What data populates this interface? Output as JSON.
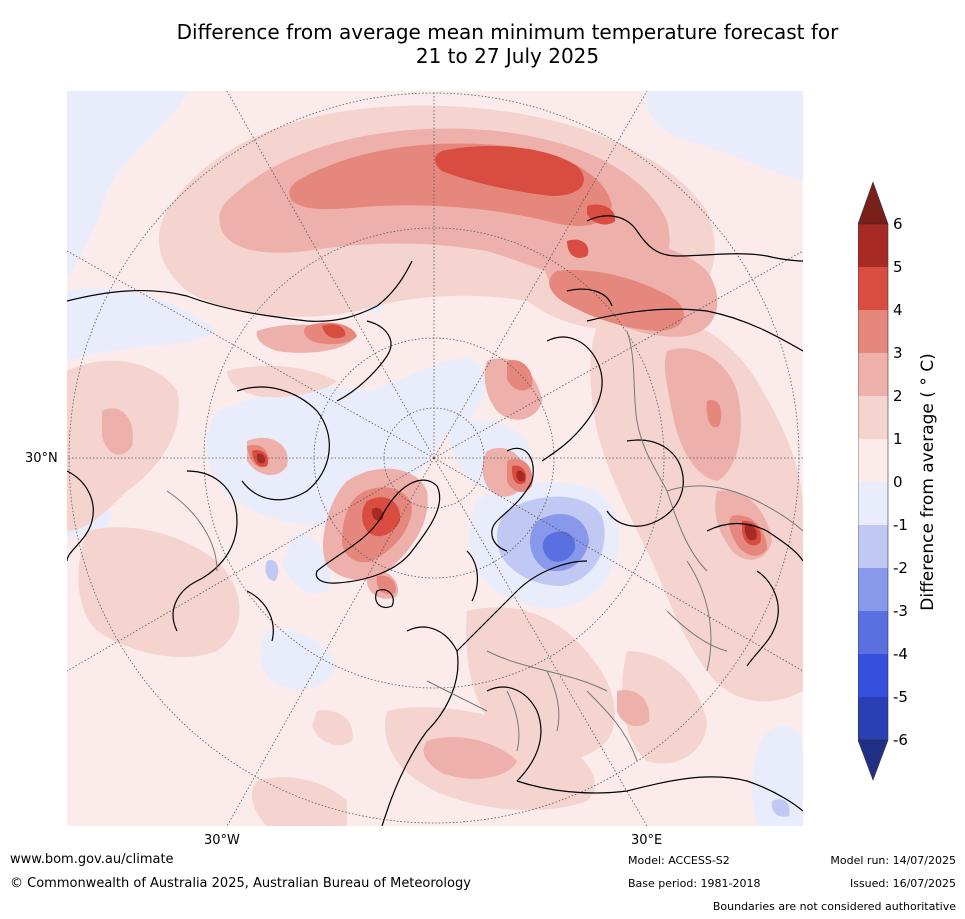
{
  "title": {
    "line1": "Difference from average mean minimum temperature forecast for",
    "line2": "21 to 27 July 2025"
  },
  "map": {
    "projection": "north-polar-stereographic",
    "labels": {
      "lat_30n": "30°N",
      "lon_30w": "30°W",
      "lon_30e": "30°E"
    }
  },
  "colorbar": {
    "label": "Difference from average ( ° C)",
    "ticks": [
      "6",
      "5",
      "4",
      "3",
      "2",
      "1",
      "0",
      "-1",
      "-2",
      "-3",
      "-4",
      "-5",
      "-6"
    ],
    "colors": {
      "over": "#7a1f1a",
      "5_6": "#a82a24",
      "4_5": "#d94c40",
      "3_4": "#e6877d",
      "2_3": "#eeb0aa",
      "1_2": "#f5d4d0",
      "0_1": "#fbeceb",
      "m1_0": "#e9ecfb",
      "m2_m1": "#c0c8f3",
      "m3_m2": "#8898ea",
      "m4_m3": "#5a70e0",
      "m5_m4": "#3550dc",
      "m6_m5": "#2a3fb4",
      "under": "#1f2f86"
    }
  },
  "footer": {
    "website": "www.bom.gov.au/climate",
    "copyright": "© Commonwealth of Australia 2025, Australian Bureau of Meteorology",
    "model": "Model: ACCESS-S2",
    "base_period": "Base period: 1981-2018",
    "model_run": "Model run: 14/07/2025",
    "issued": "Issued: 16/07/2025",
    "disclaimer": "Boundaries are not considered authoritative"
  }
}
